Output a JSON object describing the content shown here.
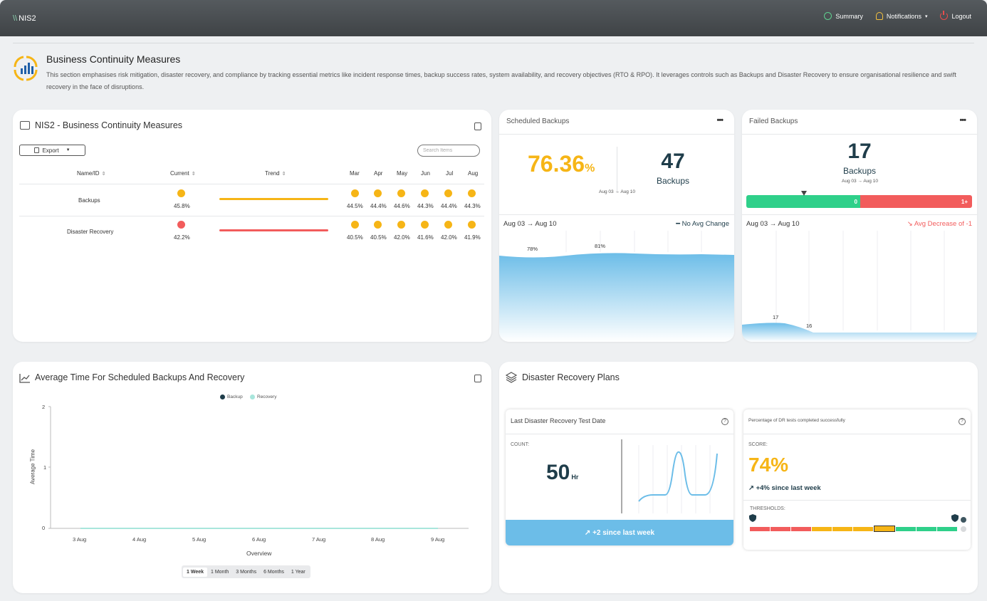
{
  "topbar": {
    "brand_slash": "\\\\",
    "brand": "NIS2",
    "nav": [
      {
        "label": "Summary",
        "icon": "globe-icon"
      },
      {
        "label": "Notifications",
        "icon": "bell-icon",
        "caret": "▾"
      },
      {
        "label": "Logout",
        "icon": "power-icon"
      }
    ]
  },
  "section": {
    "title": "Business Continuity Measures",
    "description": "This section emphasises risk mitigation, disaster recovery, and compliance by tracking essential metrics like incident response times, backup success rates, system availability, and recovery objectives (RTO & RPO). It leverages controls such as Backups and Disaster Recovery to ensure organisational resilience and swift recovery in the face of disruptions."
  },
  "table_card": {
    "title": "NIS2 - Business Continuity Measures",
    "export_label": "Export",
    "export_caret": "▼",
    "search_placeholder": "Search Items",
    "headers": {
      "name": "Name/ID",
      "current": "Current",
      "trend": "Trend",
      "sort": "⇕"
    },
    "months": [
      "Mar",
      "Apr",
      "May",
      "Jun",
      "Jul",
      "Aug"
    ],
    "rows": [
      {
        "name": "Backups",
        "current": "45.8%",
        "current_color": "#f6b516",
        "trend_color": "#f6b516",
        "months": [
          "44.5%",
          "44.4%",
          "44.6%",
          "44.3%",
          "44.4%",
          "44.3%"
        ]
      },
      {
        "name": "Disaster Recovery",
        "current": "42.2%",
        "current_color": "#f25c5c",
        "trend_color": "#f25c5c",
        "months": [
          "40.5%",
          "40.5%",
          "42.0%",
          "41.6%",
          "42.0%",
          "41.9%"
        ]
      }
    ],
    "month_dot_color": "#f6b516"
  },
  "scheduled_backups": {
    "title": "Scheduled Backups",
    "more": "•••",
    "percent": "76.36",
    "percent_unit": "%",
    "count": "47",
    "count_label": "Backups",
    "range_small": "Aug 03 → Aug 10",
    "range": "Aug 03 → Aug 10",
    "change": "━ No Avg Change",
    "chart_labels": [
      "78%",
      "81%"
    ]
  },
  "failed_backups": {
    "title": "Failed Backups",
    "more": "•••",
    "count": "17",
    "count_label": "Backups",
    "range_small": "Aug 03 → Aug 10",
    "bar_green_label": "0",
    "bar_red_label": "1+",
    "range": "Aug 03 → Aug 10",
    "change": "↘ Avg Decrease of -1",
    "chart_labels": [
      "17",
      "16"
    ]
  },
  "avg_time_card": {
    "title": "Average Time For Scheduled Backups And Recovery",
    "legend": [
      {
        "label": "Backup",
        "color": "#1f3d4a"
      },
      {
        "label": "Recovery",
        "color": "#a8e6dc"
      }
    ],
    "y_label": "Average Time",
    "x_label": "Overview",
    "y_ticks": [
      "2",
      "1",
      "0"
    ],
    "x_ticks": [
      "3 Aug",
      "4 Aug",
      "5 Aug",
      "6 Aug",
      "7 Aug",
      "8 Aug",
      "9 Aug"
    ],
    "ranges": [
      "1 Week",
      "1 Month",
      "3 Months",
      "6 Months",
      "1 Year"
    ],
    "active_range": "1 Week"
  },
  "chart_data": {
    "type": "line",
    "title": "Average Time For Scheduled Backups And Recovery",
    "xlabel": "Overview",
    "ylabel": "Average Time",
    "ylim": [
      0,
      2
    ],
    "categories": [
      "3 Aug",
      "4 Aug",
      "5 Aug",
      "6 Aug",
      "7 Aug",
      "8 Aug",
      "9 Aug"
    ],
    "series": [
      {
        "name": "Backup",
        "values": [
          0,
          0,
          0,
          0,
          0,
          0,
          0
        ]
      },
      {
        "name": "Recovery",
        "values": [
          0,
          0,
          0,
          0,
          0,
          0,
          0
        ]
      }
    ],
    "legend": "top-center"
  },
  "dr_card": {
    "title": "Disaster Recovery Plans",
    "last_test": {
      "title": "Last Disaster Recovery Test Date",
      "help": "?",
      "count_label": "COUNT:",
      "value": "50",
      "unit": "Hr",
      "footer": "↗ +2 since last week"
    },
    "pct_tests": {
      "title": "Percentage of DR tests completed successfully",
      "help": "?",
      "score_label": "SCORE:",
      "score": "74%",
      "since": "↗ +4% since last week",
      "thresholds_label": "THRESHOLDS:"
    }
  }
}
